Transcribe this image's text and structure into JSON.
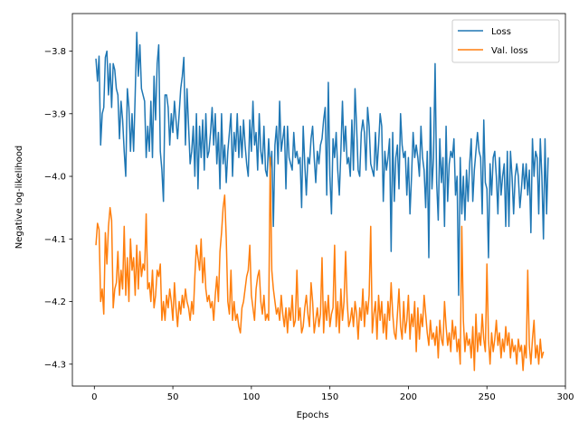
{
  "chart_data": {
    "type": "line",
    "xlabel": "Epochs",
    "ylabel": "Negative log-likelihood",
    "xlim": [
      -14,
      300
    ],
    "ylim": [
      -4.335,
      -3.74
    ],
    "xticks": [
      0,
      50,
      100,
      150,
      200,
      250,
      300
    ],
    "yticks": [
      -3.8,
      -3.9,
      -4.0,
      -4.1,
      -4.2,
      -4.3
    ],
    "ytick_labels": [
      "−3.8",
      "−3.9",
      "−4.0",
      "−4.1",
      "−4.2",
      "−4.3"
    ],
    "grid": false,
    "legend_position": "top-right",
    "series": [
      {
        "name": "Loss",
        "color": "#1f77b4",
        "x_start": 1,
        "y": [
          -3.812,
          -3.848,
          -3.808,
          -3.95,
          -3.9,
          -3.89,
          -3.81,
          -3.8,
          -3.87,
          -3.82,
          -3.89,
          -3.82,
          -3.83,
          -3.86,
          -3.87,
          -3.94,
          -3.88,
          -3.91,
          -3.96,
          -4.0,
          -3.86,
          -3.89,
          -3.96,
          -3.9,
          -3.96,
          -3.87,
          -3.77,
          -3.84,
          -3.79,
          -3.86,
          -3.87,
          -3.88,
          -3.97,
          -3.92,
          -3.96,
          -3.88,
          -3.97,
          -3.84,
          -3.91,
          -3.82,
          -3.79,
          -3.96,
          -3.99,
          -4.04,
          -3.87,
          -3.87,
          -3.89,
          -3.95,
          -3.9,
          -3.93,
          -3.88,
          -3.91,
          -3.94,
          -3.9,
          -3.86,
          -3.84,
          -3.81,
          -3.95,
          -3.86,
          -3.92,
          -3.98,
          -3.96,
          -3.92,
          -4.0,
          -3.9,
          -4.02,
          -3.92,
          -3.97,
          -3.91,
          -3.99,
          -3.9,
          -3.97,
          -3.96,
          -3.93,
          -3.89,
          -3.95,
          -3.9,
          -3.98,
          -3.93,
          -4.02,
          -3.9,
          -3.98,
          -3.95,
          -4.01,
          -3.96,
          -3.93,
          -3.9,
          -4.0,
          -3.93,
          -3.96,
          -3.9,
          -3.97,
          -3.92,
          -3.97,
          -3.91,
          -3.95,
          -3.98,
          -4.0,
          -3.91,
          -3.96,
          -3.88,
          -3.95,
          -3.93,
          -3.99,
          -3.9,
          -3.96,
          -3.98,
          -3.92,
          -3.99,
          -4.0,
          -3.94,
          -3.99,
          -3.96,
          -4.08,
          -3.95,
          -3.92,
          -3.98,
          -3.88,
          -3.96,
          -3.94,
          -3.92,
          -4.02,
          -3.92,
          -3.97,
          -3.98,
          -3.99,
          -3.93,
          -3.97,
          -3.96,
          -3.98,
          -3.97,
          -4.05,
          -3.92,
          -3.98,
          -4.03,
          -3.97,
          -3.98,
          -3.94,
          -3.92,
          -3.97,
          -4.01,
          -3.96,
          -3.98,
          -3.95,
          -3.94,
          -3.91,
          -3.89,
          -4.03,
          -3.85,
          -4.0,
          -4.06,
          -3.94,
          -3.97,
          -3.93,
          -3.99,
          -4.03,
          -3.96,
          -3.88,
          -3.96,
          -3.92,
          -3.98,
          -3.97,
          -4.0,
          -3.91,
          -3.99,
          -3.86,
          -3.92,
          -3.99,
          -4.0,
          -3.93,
          -3.91,
          -3.93,
          -3.99,
          -3.89,
          -3.92,
          -3.98,
          -3.99,
          -4.0,
          -3.93,
          -3.99,
          -3.95,
          -3.9,
          -3.92,
          -4.04,
          -3.96,
          -3.99,
          -3.97,
          -3.94,
          -4.12,
          -3.93,
          -4.04,
          -3.97,
          -3.95,
          -4.02,
          -3.9,
          -3.95,
          -3.97,
          -3.96,
          -4.03,
          -3.97,
          -4.06,
          -4.0,
          -3.93,
          -3.97,
          -3.95,
          -3.97,
          -4.0,
          -3.92,
          -3.97,
          -3.99,
          -4.05,
          -3.96,
          -4.13,
          -3.89,
          -4.02,
          -3.97,
          -3.82,
          -4.01,
          -4.07,
          -3.94,
          -4.01,
          -3.97,
          -4.08,
          -3.92,
          -4.04,
          -3.98,
          -3.96,
          -3.97,
          -3.94,
          -4.03,
          -4.0,
          -4.19,
          -3.97,
          -4.06,
          -4.0,
          -4.07,
          -3.99,
          -4.04,
          -3.98,
          -3.94,
          -4.04,
          -3.99,
          -3.96,
          -3.93,
          -3.96,
          -3.97,
          -4.06,
          -3.91,
          -4.01,
          -4.02,
          -4.13,
          -3.98,
          -4.03,
          -3.97,
          -3.96,
          -4.0,
          -4.06,
          -3.97,
          -4.03,
          -4.0,
          -3.98,
          -4.08,
          -3.96,
          -4.08,
          -3.96,
          -4.0,
          -4.06,
          -4.0,
          -3.98,
          -4.0,
          -4.05,
          -4.02,
          -3.98,
          -4.02,
          -3.98,
          -4.03,
          -3.99,
          -4.09,
          -3.94,
          -4.0,
          -3.96,
          -3.97,
          -4.06,
          -3.94,
          -4.0,
          -4.1,
          -3.94,
          -4.06,
          -3.97
        ]
      },
      {
        "name": "Val. loss",
        "color": "#ff7f0e",
        "x_start": 1,
        "y": [
          -4.11,
          -4.075,
          -4.085,
          -4.2,
          -4.18,
          -4.22,
          -4.09,
          -4.14,
          -4.08,
          -4.05,
          -4.07,
          -4.21,
          -4.18,
          -4.17,
          -4.12,
          -4.19,
          -4.15,
          -4.18,
          -4.08,
          -4.19,
          -4.13,
          -4.2,
          -4.1,
          -4.15,
          -4.13,
          -4.19,
          -4.11,
          -4.18,
          -4.12,
          -4.16,
          -4.14,
          -4.15,
          -4.06,
          -4.18,
          -4.17,
          -4.2,
          -4.15,
          -4.21,
          -4.19,
          -4.15,
          -4.16,
          -4.14,
          -4.23,
          -4.2,
          -4.23,
          -4.19,
          -4.21,
          -4.18,
          -4.2,
          -4.23,
          -4.17,
          -4.21,
          -4.24,
          -4.2,
          -4.22,
          -4.19,
          -4.21,
          -4.18,
          -4.2,
          -4.21,
          -4.23,
          -4.2,
          -4.22,
          -4.16,
          -4.11,
          -4.13,
          -4.15,
          -4.1,
          -4.17,
          -4.13,
          -4.18,
          -4.2,
          -4.19,
          -4.21,
          -4.2,
          -4.23,
          -4.19,
          -4.16,
          -4.2,
          -4.12,
          -4.09,
          -4.05,
          -4.03,
          -4.1,
          -4.2,
          -4.22,
          -4.15,
          -4.23,
          -4.2,
          -4.23,
          -4.22,
          -4.24,
          -4.25,
          -4.21,
          -4.2,
          -4.18,
          -4.16,
          -4.15,
          -4.11,
          -4.19,
          -4.21,
          -4.23,
          -4.18,
          -4.16,
          -4.15,
          -4.2,
          -4.22,
          -4.19,
          -4.23,
          -4.22,
          -4.23,
          -3.97,
          -4.15,
          -4.18,
          -4.2,
          -4.22,
          -4.21,
          -4.23,
          -4.19,
          -4.22,
          -4.24,
          -4.21,
          -4.25,
          -4.21,
          -4.23,
          -4.19,
          -4.24,
          -4.23,
          -4.15,
          -4.23,
          -4.21,
          -4.25,
          -4.24,
          -4.21,
          -4.19,
          -4.22,
          -4.24,
          -4.17,
          -4.2,
          -4.25,
          -4.23,
          -4.21,
          -4.24,
          -4.22,
          -4.13,
          -4.25,
          -4.2,
          -4.23,
          -4.19,
          -4.24,
          -4.22,
          -4.21,
          -4.11,
          -4.24,
          -4.2,
          -4.25,
          -4.18,
          -4.23,
          -4.2,
          -4.12,
          -4.2,
          -4.24,
          -4.23,
          -4.21,
          -4.24,
          -4.2,
          -4.22,
          -4.26,
          -4.21,
          -4.23,
          -4.18,
          -4.24,
          -4.2,
          -4.22,
          -4.19,
          -4.08,
          -4.25,
          -4.22,
          -4.2,
          -4.26,
          -4.19,
          -4.23,
          -4.2,
          -4.25,
          -4.22,
          -4.26,
          -4.2,
          -4.23,
          -4.17,
          -4.22,
          -4.25,
          -4.26,
          -4.22,
          -4.18,
          -4.24,
          -4.26,
          -4.2,
          -4.25,
          -4.23,
          -4.19,
          -4.26,
          -4.22,
          -4.24,
          -4.2,
          -4.28,
          -4.21,
          -4.26,
          -4.22,
          -4.24,
          -4.19,
          -4.22,
          -4.25,
          -4.27,
          -4.23,
          -4.26,
          -4.25,
          -4.27,
          -4.24,
          -4.29,
          -4.23,
          -4.26,
          -4.27,
          -4.2,
          -4.24,
          -4.27,
          -4.25,
          -4.28,
          -4.23,
          -4.26,
          -4.24,
          -4.28,
          -4.26,
          -4.3,
          -4.08,
          -4.23,
          -4.28,
          -4.25,
          -4.27,
          -4.26,
          -4.29,
          -4.24,
          -4.31,
          -4.22,
          -4.28,
          -4.25,
          -4.27,
          -4.22,
          -4.26,
          -4.28,
          -4.14,
          -4.26,
          -4.3,
          -4.25,
          -4.28,
          -4.26,
          -4.23,
          -4.27,
          -4.25,
          -4.29,
          -4.26,
          -4.28,
          -4.24,
          -4.27,
          -4.25,
          -4.29,
          -4.26,
          -4.28,
          -4.27,
          -4.3,
          -4.26,
          -4.28,
          -4.27,
          -4.31,
          -4.27,
          -4.29,
          -4.15,
          -4.27,
          -4.3,
          -4.26,
          -4.23,
          -4.29,
          -4.27,
          -4.3,
          -4.26,
          -4.29,
          -4.28
        ]
      }
    ]
  }
}
